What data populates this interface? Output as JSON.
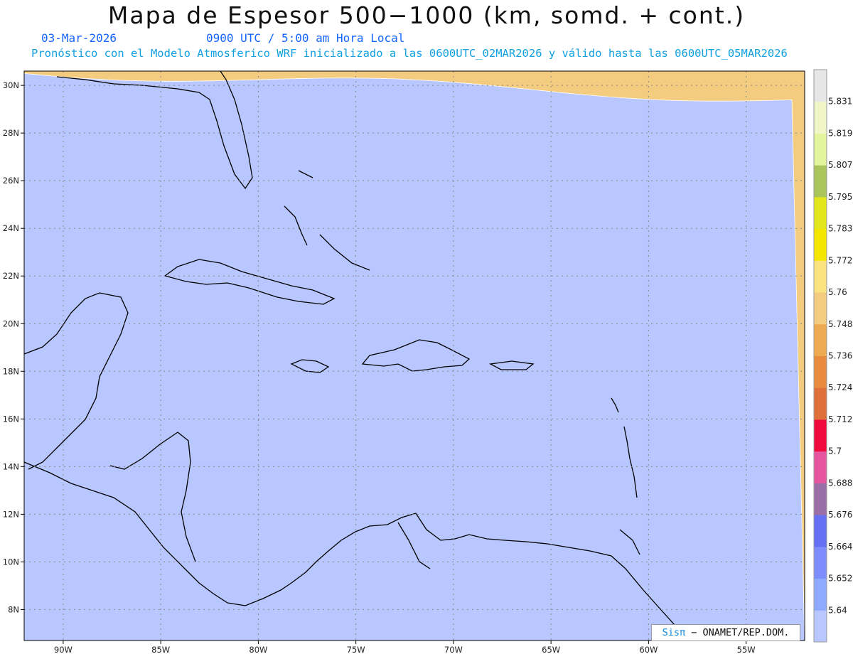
{
  "header": {
    "title": "Mapa de Espesor 500−1000 (km, somd. + cont.)",
    "date": "03-Mar-2026",
    "time": "0900 UTC / 5:00 am Hora Local",
    "description": "Pronóstico con el Modelo Atmosferico WRF inicializado a las 0600UTC_02MAR2026 y válido hasta las  0600UTC_05MAR2026"
  },
  "map": {
    "lon_labels": [
      "90W",
      "85W",
      "80W",
      "75W",
      "70W",
      "65W",
      "60W",
      "55W"
    ],
    "lat_labels": [
      "30N",
      "28N",
      "26N",
      "24N",
      "22N",
      "20N",
      "18N",
      "16N",
      "14N",
      "12N",
      "10N",
      "8N"
    ],
    "lon_range": [
      -92,
      -52
    ],
    "lat_range": [
      6.7,
      30.6
    ]
  },
  "colorbar": {
    "labels": [
      "5.64",
      "5.652",
      "5.664",
      "5.676",
      "5.688",
      "5.7",
      "5.712",
      "5.724",
      "5.736",
      "5.748",
      "5.76",
      "5.772",
      "5.783",
      "5.795",
      "5.807",
      "5.819",
      "5.831"
    ],
    "colors": [
      "#b8c7ff",
      "#8eaaff",
      "#7d8dfb",
      "#6570f4",
      "#9a6fa8",
      "#e6559f",
      "#ee0a3c",
      "#e0703a",
      "#e88b3e",
      "#eeaa50",
      "#f3cc80",
      "#fbe47f",
      "#f5e600",
      "#e2e61d",
      "#a9c55c",
      "#e4f49e",
      "#f0f6c6",
      "#e6e6e6"
    ]
  },
  "credit": {
    "brand": "Sisπ",
    "org": " − ONAMET/REP.DOM."
  }
}
